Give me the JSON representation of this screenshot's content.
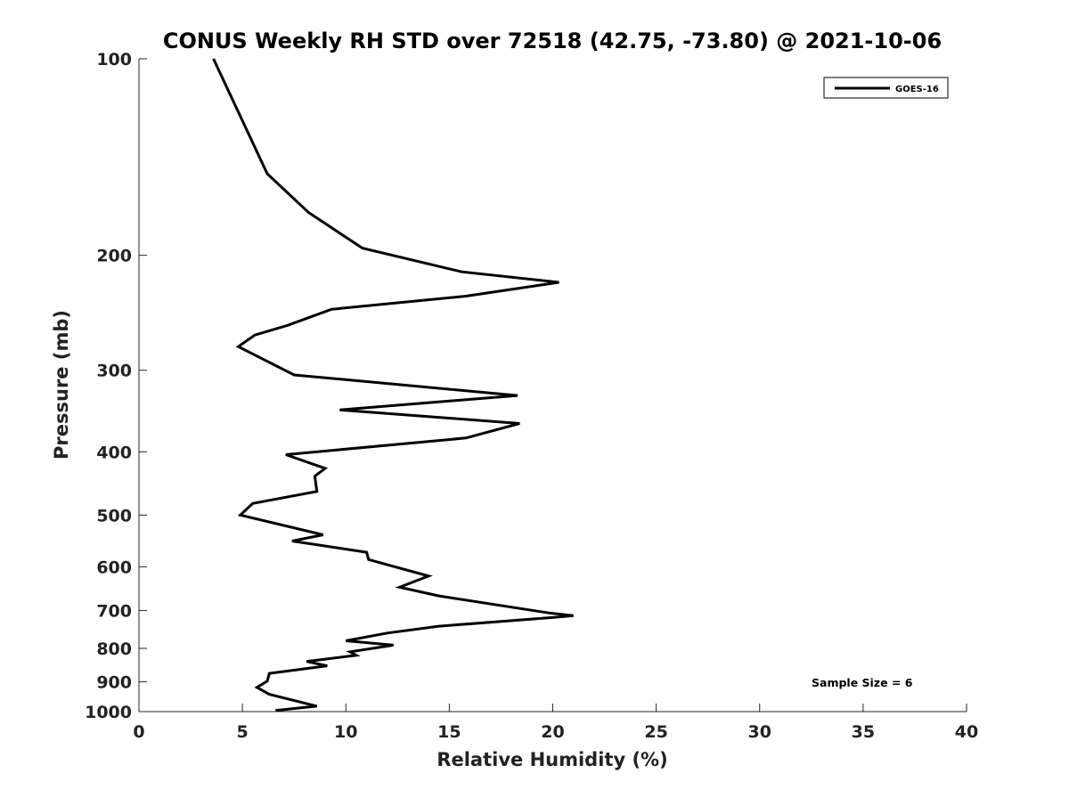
{
  "chart_data": {
    "type": "line",
    "title": "CONUS Weekly RH STD over 72518 (42.75, -73.80) @ 2021-10-06",
    "xlabel": "Relative Humidity (%)",
    "ylabel": "Pressure (mb)",
    "xlim": [
      0,
      40
    ],
    "ylim": [
      1000,
      100
    ],
    "y_scale": "log",
    "y_inverted": true,
    "x_ticks": [
      0,
      5,
      10,
      15,
      20,
      25,
      30,
      35,
      40
    ],
    "y_ticks": [
      100,
      200,
      300,
      400,
      500,
      600,
      700,
      800,
      900,
      1000
    ],
    "grid": false,
    "legend_position": "top-right",
    "annotation": "Sample Size = 6",
    "series": [
      {
        "name": "GOES-16",
        "color": "#000000",
        "x": [
          3.6,
          6.2,
          8.2,
          10.8,
          15.6,
          20.3,
          15.8,
          9.3,
          7.2,
          5.6,
          4.8,
          7.5,
          18.3,
          9.7,
          18.4,
          15.8,
          7.1,
          9.0,
          8.5,
          8.6,
          5.5,
          4.9,
          8.9,
          7.4,
          11.0,
          11.1,
          14.0,
          12.6,
          14.5,
          19.8,
          21.0,
          19.9,
          14.5,
          12.0,
          10.0,
          12.3,
          10.2,
          10.5,
          8.1,
          9.1,
          6.3,
          6.2,
          5.7,
          6.3,
          8.6,
          6.6
        ],
        "y": [
          100,
          150,
          172,
          195,
          212,
          220,
          231,
          242,
          256,
          265,
          276,
          305,
          328,
          345,
          362,
          381,
          404,
          424,
          436,
          460,
          480,
          500,
          536,
          548,
          570,
          585,
          620,
          645,
          665,
          706,
          713,
          718,
          740,
          758,
          779,
          791,
          810,
          820,
          838,
          851,
          874,
          898,
          918,
          941,
          981,
          996
        ]
      }
    ]
  }
}
